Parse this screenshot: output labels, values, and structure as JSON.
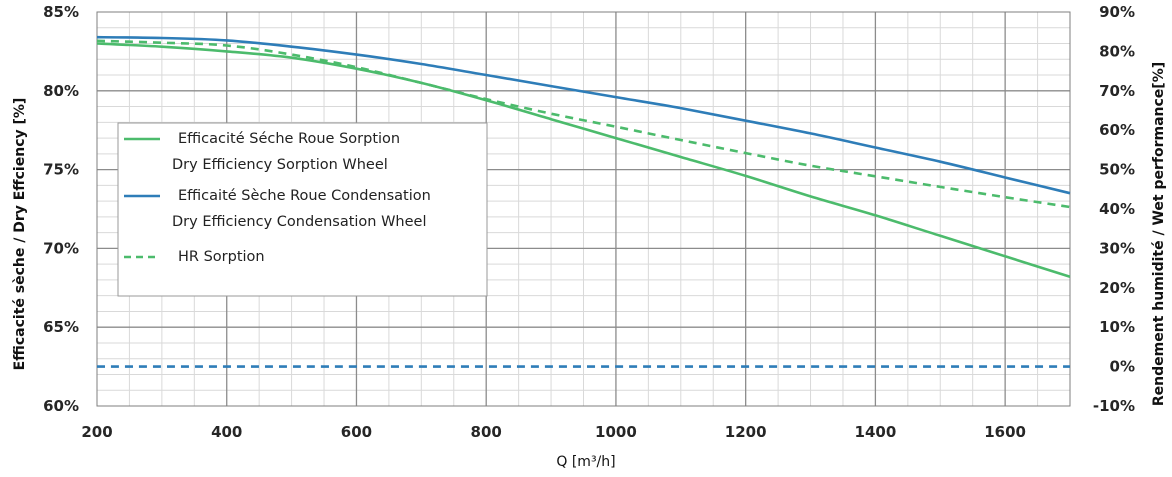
{
  "chart_data": {
    "type": "line",
    "xlabel": "Q [m³/h]",
    "ylabel_left": "Efficacité sèche / Dry Effciency [%]",
    "ylabel_right": "Rendement humidité / Wet performance[%]",
    "xlim": [
      200,
      1700
    ],
    "xticks": [
      "200",
      "400",
      "600",
      "800",
      "1000",
      "1200",
      "1400",
      "1600"
    ],
    "ylim_left": [
      60,
      85
    ],
    "yticks_left": [
      "60%",
      "65%",
      "70%",
      "75%",
      "80%",
      "85%"
    ],
    "ylim_right": [
      -10,
      90
    ],
    "yticks_right": [
      "-10%",
      "0%",
      "10%",
      "20%",
      "30%",
      "40%",
      "50%",
      "60%",
      "70%",
      "80%",
      "90%"
    ],
    "grid": true,
    "legend_position": "left",
    "series": [
      {
        "name_line1": "Efficacité Séche Roue Sorption",
        "name_line2": "Dry Efficiency Sorption Wheel",
        "axis": "left",
        "color": "#4cbb6c",
        "dash": "solid",
        "x": [
          200,
          300,
          400,
          500,
          600,
          700,
          800,
          900,
          1000,
          1100,
          1200,
          1300,
          1400,
          1500,
          1600,
          1700
        ],
        "values": [
          83.0,
          82.8,
          82.5,
          82.1,
          81.4,
          80.5,
          79.4,
          78.2,
          77.0,
          75.8,
          74.6,
          73.3,
          72.1,
          70.8,
          69.5,
          68.2
        ]
      },
      {
        "name_line1": "Efficaité Sèche Roue Condensation",
        "name_line2": "Dry Efficiency Condensation Wheel",
        "axis": "left",
        "color": "#2e7db8",
        "dash": "solid",
        "x": [
          200,
          300,
          400,
          500,
          600,
          700,
          800,
          900,
          1000,
          1100,
          1200,
          1300,
          1400,
          1500,
          1600,
          1700
        ],
        "values": [
          83.4,
          83.35,
          83.2,
          82.8,
          82.3,
          81.7,
          81.0,
          80.3,
          79.6,
          78.9,
          78.1,
          77.3,
          76.4,
          75.5,
          74.5,
          73.5
        ]
      },
      {
        "name_line1": "HR Sorption",
        "name_line2": "",
        "axis": "right",
        "color": "#4cbb6c",
        "dash": "dashed",
        "x": [
          200,
          300,
          400,
          500,
          600,
          700,
          800,
          900,
          1000,
          1100,
          1200,
          1300,
          1400,
          1500,
          1600,
          1700
        ],
        "values": [
          82.7,
          82.2,
          81.5,
          79.2,
          76.0,
          72.0,
          67.9,
          64.2,
          60.9,
          57.5,
          54.2,
          51.0,
          48.3,
          45.6,
          43.0,
          40.5
        ]
      },
      {
        "axis": "right",
        "color": "#2e7db8",
        "dash": "dashed",
        "x": [
          200,
          1700
        ],
        "values": [
          0,
          0
        ]
      }
    ]
  }
}
